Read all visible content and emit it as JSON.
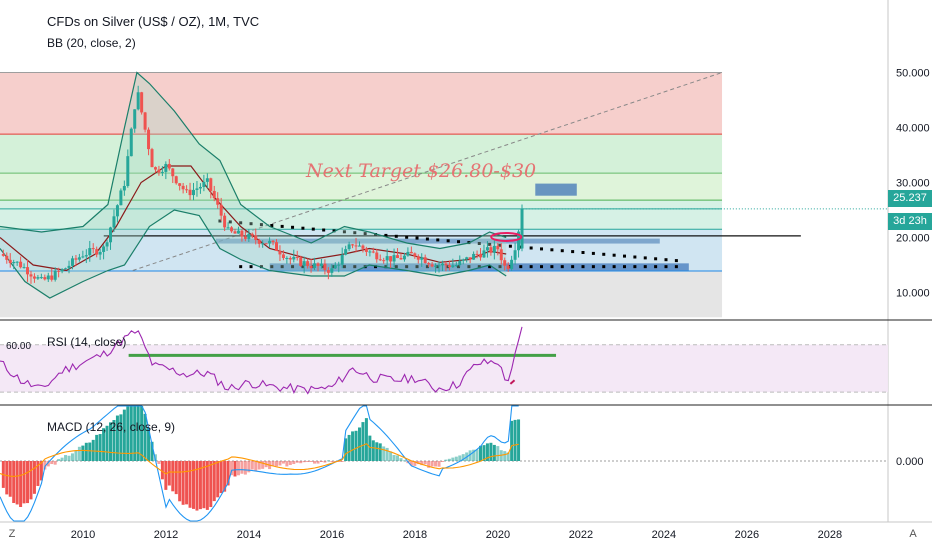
{
  "header": {
    "title": "CFDs on Silver (US$ / OZ), 1M, TVC",
    "bb_label": "BB (20, close, 2)",
    "rsi_label": "RSI (14, close)",
    "macd_label": "MACD (12, 26, close, 9)"
  },
  "price_badges": {
    "last_price": "25.237",
    "countdown": "3d 23h",
    "last_price_color": "#26a69a",
    "countdown_color": "#26a69a"
  },
  "annotation": {
    "text": "Next Target $26.80-$30",
    "color": "#e57373"
  },
  "rsi_axis": {
    "tick": "60.00"
  },
  "corner": {
    "left": "Z",
    "right": "A"
  },
  "colors": {
    "bull": "#26a69a",
    "bear": "#ef5350",
    "bb_band": "#1b7f6a",
    "bb_basis": "#8b1a1a",
    "rsi_line": "#9c27b0",
    "macd_line": "#2196f3",
    "signal_line": "#ff9800",
    "fib_red": "#f4c7c3",
    "fib_green": "#cdeed2",
    "fib_blue": "#c8e0f0",
    "fib_gray": "#e0e0e0"
  },
  "chart_data": [
    {
      "type": "candlestick",
      "title": "CFDs on Silver (US$ / OZ), 1M, TVC",
      "x_axis_ticks": [
        "2010",
        "2012",
        "2014",
        "2016",
        "2018",
        "2020",
        "2022",
        "2024",
        "2026",
        "2028"
      ],
      "y_axis_ticks": [
        10,
        20,
        30,
        40,
        50
      ],
      "y_axis_tick_labels": [
        "10.000",
        "20.000",
        "30.000",
        "40.000",
        "50.000"
      ],
      "ylim": [
        5,
        55
      ],
      "xlim": [
        2008.0,
        2029.4
      ],
      "series": [
        {
          "x": [
            2008.0,
            2008.5,
            2009.0,
            2009.5,
            2010.0,
            2010.5,
            2011.0,
            2011.3,
            2011.7,
            2012.0,
            2012.5,
            2013.0,
            2013.5,
            2014.0,
            2014.5,
            2015.0,
            2015.5,
            2016.0,
            2016.5,
            2017.0,
            2017.5,
            2018.0,
            2018.5,
            2019.0,
            2019.5,
            2020.0,
            2020.2,
            2020.4,
            2020.6
          ],
          "close": [
            17,
            15,
            12,
            14,
            17,
            18,
            30,
            47,
            32,
            33,
            28,
            30,
            21,
            20,
            19,
            16,
            15,
            14,
            19,
            17,
            16,
            17,
            15,
            15,
            17,
            18,
            14,
            18,
            25.2
          ]
        }
      ],
      "indicators": [
        {
          "name": "BB (20, close, 2)"
        }
      ],
      "annotations": [
        "Next Target $26.80-$30"
      ]
    },
    {
      "type": "line",
      "title": "RSI (14, close)",
      "y_axis_tick_labels": [
        "60.00"
      ],
      "ylim": [
        20,
        90
      ],
      "series": [
        {
          "x": [
            2008.0,
            2008.5,
            2009.0,
            2009.5,
            2010.0,
            2010.5,
            2011.0,
            2011.3,
            2011.7,
            2012.0,
            2012.5,
            2013.0,
            2013.5,
            2014.0,
            2014.5,
            2015.0,
            2015.5,
            2016.0,
            2016.5,
            2017.0,
            2017.5,
            2018.0,
            2018.5,
            2019.0,
            2019.5,
            2020.0,
            2020.2,
            2020.4,
            2020.6
          ],
          "y": [
            55,
            40,
            32,
            48,
            55,
            62,
            75,
            82,
            52,
            50,
            45,
            46,
            33,
            38,
            35,
            33,
            32,
            34,
            50,
            42,
            40,
            42,
            33,
            36,
            54,
            56,
            37,
            58,
            85
          ]
        }
      ]
    },
    {
      "type": "bar",
      "title": "MACD (12, 26, close, 9)",
      "y_axis_tick_labels": [
        "0.000"
      ]
    }
  ]
}
